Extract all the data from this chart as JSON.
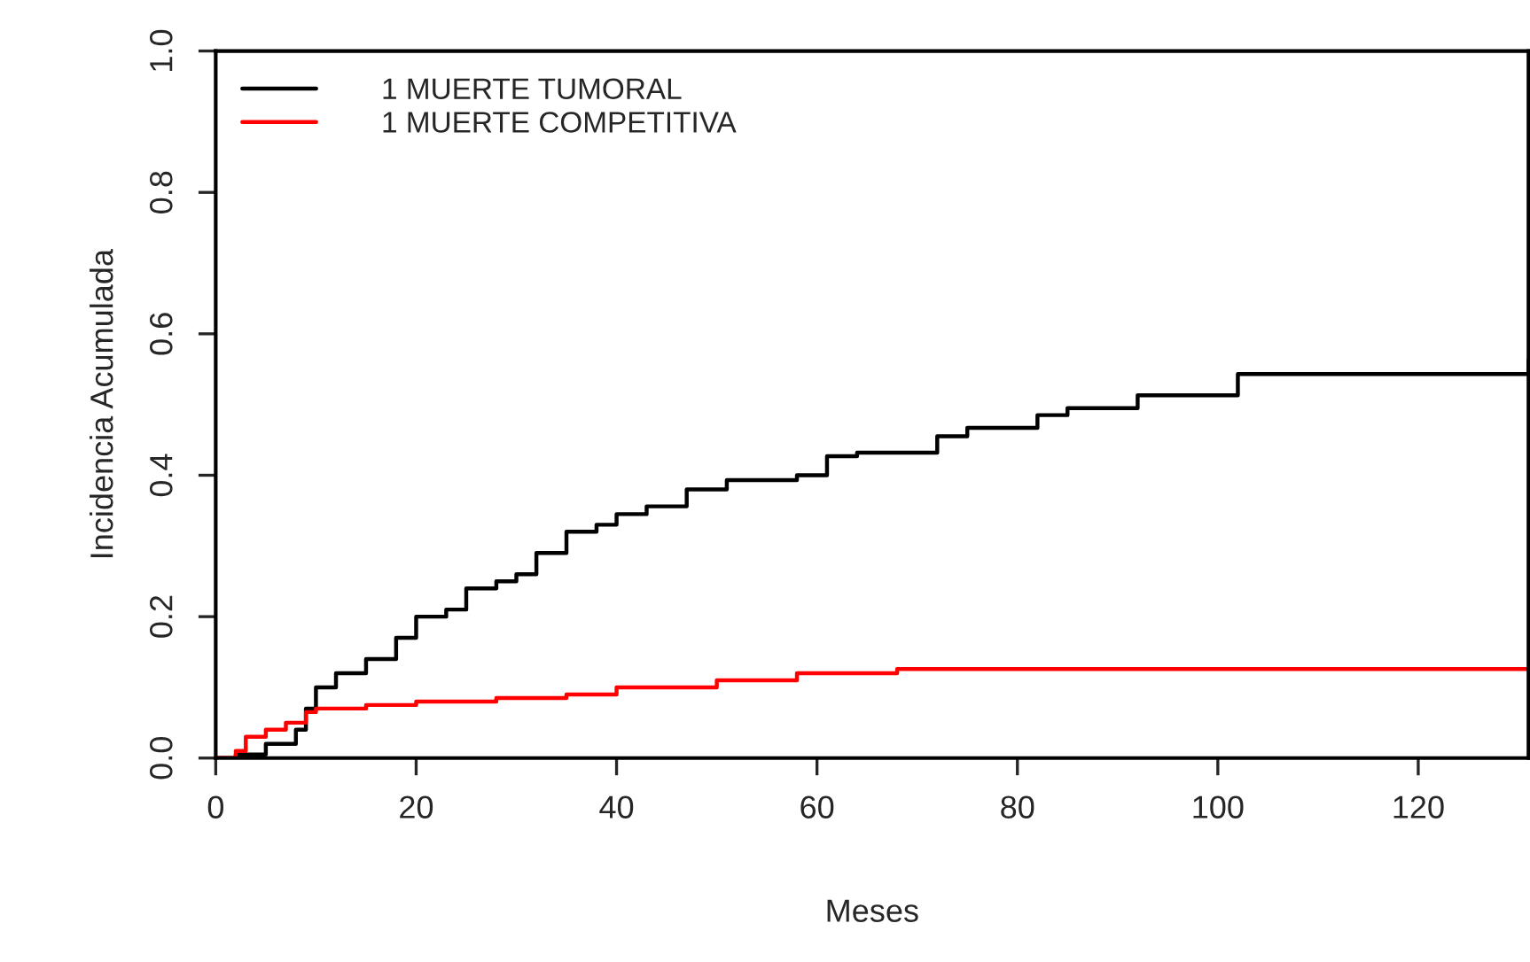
{
  "chart_data": {
    "type": "step",
    "xlabel": "Meses",
    "ylabel": "Incidencia Acumulada",
    "xlim": [
      0,
      131
    ],
    "ylim": [
      0,
      1
    ],
    "xticks": [
      0,
      20,
      40,
      60,
      80,
      100,
      120
    ],
    "yticks": [
      {
        "value": 0,
        "label": "0.0"
      },
      {
        "value": 0.2,
        "label": "0.2"
      },
      {
        "value": 0.4,
        "label": "0.4"
      },
      {
        "value": 0.6,
        "label": "0.6"
      },
      {
        "value": 0.8,
        "label": "0.8"
      },
      {
        "value": 1,
        "label": "1.0"
      }
    ],
    "legend": "top left",
    "grid": false,
    "line_style": "solid",
    "marker": "none",
    "series": [
      {
        "name": "1 MUERTE TUMORAL",
        "color": "#000000",
        "x": [
          0,
          2,
          5,
          8,
          9,
          10,
          12,
          15,
          18,
          20,
          23,
          25,
          28,
          30,
          32,
          35,
          38,
          40,
          43,
          47,
          51,
          58,
          61,
          64,
          72,
          75,
          82,
          85,
          92,
          102,
          131
        ],
        "values": [
          0,
          0.005,
          0.02,
          0.04,
          0.07,
          0.1,
          0.12,
          0.14,
          0.17,
          0.2,
          0.21,
          0.24,
          0.25,
          0.26,
          0.29,
          0.32,
          0.33,
          0.345,
          0.356,
          0.38,
          0.393,
          0.4,
          0.427,
          0.432,
          0.455,
          0.467,
          0.485,
          0.495,
          0.513,
          0.543,
          0.563
        ]
      },
      {
        "name": "1 MUERTE COMPETITIVA",
        "color": "#ff0000",
        "x": [
          0,
          2,
          3,
          5,
          7,
          9,
          10,
          15,
          20,
          28,
          35,
          40,
          50,
          58,
          68,
          131
        ],
        "values": [
          0,
          0.01,
          0.03,
          0.04,
          0.05,
          0.065,
          0.07,
          0.075,
          0.08,
          0.085,
          0.09,
          0.1,
          0.11,
          0.12,
          0.126,
          0.126
        ]
      }
    ]
  }
}
